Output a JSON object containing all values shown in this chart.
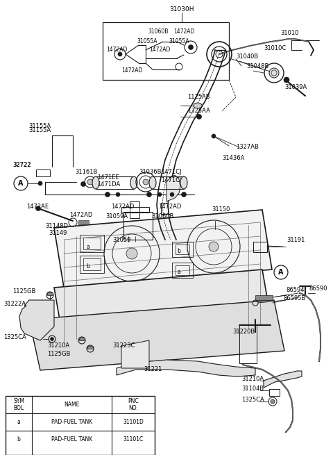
{
  "bg_color": "#ffffff",
  "line_color": "#1a1a1a",
  "fig_width": 4.8,
  "fig_height": 6.55,
  "dpi": 100,
  "table": {
    "col_headers": [
      "SYM\nBOL",
      "NAME",
      "PNC\nNO."
    ],
    "rows": [
      [
        "a",
        "PAD-FUEL TANK",
        "31101D"
      ],
      [
        "b",
        "PAD-FUEL TANK",
        "31101C"
      ]
    ]
  }
}
